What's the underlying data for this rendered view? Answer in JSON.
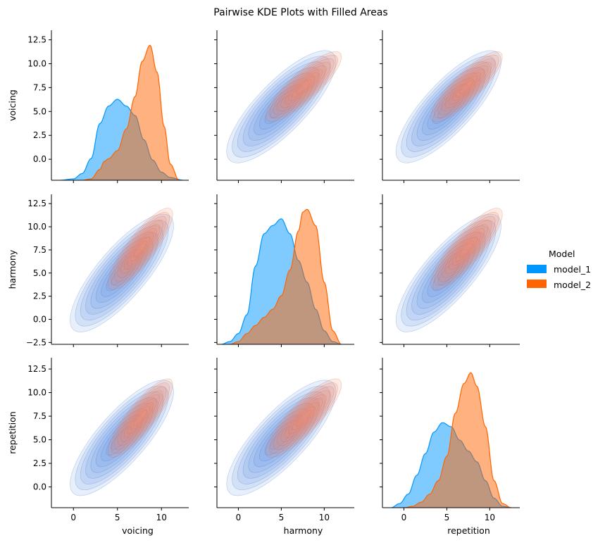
{
  "chart_data": {
    "type": "pairplot-kde",
    "title": "Pairwise KDE Plots with Filled Areas",
    "variables": [
      "voicing",
      "harmony",
      "repetition"
    ],
    "hue_title": "Model",
    "models": [
      {
        "name": "model_1",
        "color": "#0096FF"
      },
      {
        "name": "model_2",
        "color": "#FF6400"
      }
    ],
    "overlap_color": "#5E87A6",
    "axis_ranges": {
      "voicing": [
        -2.5,
        13.1
      ],
      "harmony": [
        -2.5,
        13.5
      ],
      "repetition": [
        -2.5,
        13.5
      ]
    },
    "row_axis_ranges": {
      "voicing": [
        -2.2,
        13.5
      ],
      "harmony": [
        -2.7,
        13.5
      ],
      "repetition": [
        -2.2,
        13.7
      ]
    },
    "x_ticks": [
      0,
      5,
      10
    ],
    "y_ticks": {
      "voicing": [
        0.0,
        2.5,
        5.0,
        7.5,
        10.0,
        12.5
      ],
      "harmony": [
        -2.5,
        0.0,
        2.5,
        5.0,
        7.5,
        10.0,
        12.5
      ],
      "repetition": [
        0.0,
        2.5,
        5.0,
        7.5,
        10.0,
        12.5
      ]
    },
    "y_tick_labels": {
      "voicing": [
        "0.0",
        "2.5",
        "5.0",
        "7.5",
        "10.0",
        "12.5"
      ],
      "harmony": [
        "−2.5",
        "0.0",
        "2.5",
        "5.0",
        "7.5",
        "10.0",
        "12.5"
      ],
      "repetition": [
        "0.0",
        "2.5",
        "5.0",
        "7.5",
        "10.0",
        "12.5"
      ]
    },
    "x_tick_labels": [
      "0",
      "5",
      "10"
    ],
    "diagonal_kde": {
      "voicing": {
        "model_1": {
          "x": [
            -1.5,
            0,
            1,
            2,
            3,
            4,
            5,
            6,
            7,
            8,
            9,
            10,
            11,
            12.5
          ],
          "density": [
            0.0,
            0.01,
            0.05,
            0.16,
            0.42,
            0.55,
            0.6,
            0.55,
            0.48,
            0.3,
            0.15,
            0.06,
            0.02,
            0.0
          ]
        },
        "model_2": {
          "x": [
            1,
            2,
            3,
            3.5,
            4,
            5,
            6,
            7,
            7.8,
            8.7,
            9.5,
            10.3,
            11,
            12
          ],
          "density": [
            0.0,
            0.01,
            0.08,
            0.14,
            0.16,
            0.22,
            0.38,
            0.62,
            0.88,
            1.0,
            0.8,
            0.4,
            0.12,
            0.0
          ]
        }
      },
      "harmony": {
        "model_1": {
          "x": [
            -2,
            -1,
            0,
            1,
            2,
            3,
            4,
            5,
            6,
            7,
            8,
            9,
            10,
            11,
            12
          ],
          "density": [
            0.0,
            0.02,
            0.08,
            0.22,
            0.58,
            0.82,
            0.88,
            0.93,
            0.82,
            0.62,
            0.46,
            0.26,
            0.1,
            0.02,
            0.0
          ]
        },
        "model_2": {
          "x": [
            -1,
            0,
            1,
            2,
            3,
            4,
            5,
            6,
            7,
            7.5,
            8,
            9,
            10,
            11,
            12
          ],
          "density": [
            0.0,
            0.02,
            0.08,
            0.14,
            0.2,
            0.26,
            0.36,
            0.55,
            0.84,
            0.98,
            1.0,
            0.88,
            0.46,
            0.1,
            0.0
          ]
        }
      },
      "repetition": {
        "model_1": {
          "x": [
            -1.5,
            -0.5,
            0.5,
            1.5,
            2.5,
            3.5,
            4.5,
            5.5,
            6.5,
            7.5,
            8.5,
            9.5,
            10.5,
            11.5,
            12.5
          ],
          "density": [
            0.0,
            0.03,
            0.1,
            0.24,
            0.4,
            0.56,
            0.63,
            0.6,
            0.5,
            0.42,
            0.34,
            0.2,
            0.07,
            0.01,
            0.0
          ]
        },
        "model_2": {
          "x": [
            0,
            1,
            2,
            3,
            4,
            5,
            6,
            7,
            7.8,
            8.5,
            9.5,
            10.5,
            11.5,
            12.5
          ],
          "density": [
            0.0,
            0.01,
            0.04,
            0.1,
            0.2,
            0.38,
            0.7,
            0.92,
            1.0,
            0.9,
            0.6,
            0.2,
            0.03,
            0.0
          ]
        }
      }
    },
    "bivariate_kde": {
      "model_1": {
        "voicing": {
          "mean": 5.5,
          "sd": 2.4
        },
        "harmony": {
          "mean": 5.0,
          "sd": 2.6
        },
        "repetition": {
          "mean": 5.2,
          "sd": 2.5
        },
        "corr": 0.8
      },
      "model_2": {
        "voicing": {
          "mean": 7.6,
          "sd": 1.5
        },
        "harmony": {
          "mean": 7.6,
          "sd": 1.8
        },
        "repetition": {
          "mean": 7.3,
          "sd": 1.7
        },
        "corr": 0.85
      }
    },
    "contour_levels": 9,
    "legend_placement": "right"
  }
}
